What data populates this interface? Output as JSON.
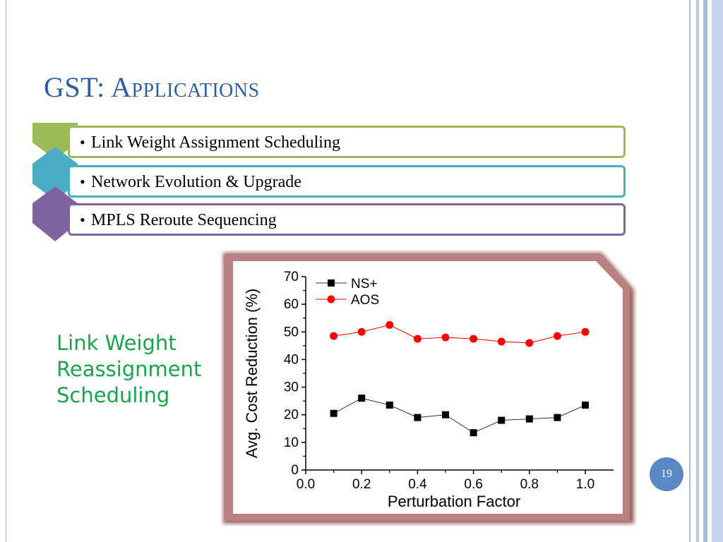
{
  "slide": {
    "title": "GST: Applications",
    "page_number": "19"
  },
  "bullets": [
    {
      "bullet": "•",
      "text": "Link Weight Assignment Scheduling",
      "color": "#9bbb59"
    },
    {
      "bullet": "•",
      "text": "Network Evolution & Upgrade",
      "color": "#4bacc6"
    },
    {
      "bullet": "•",
      "text": "MPLS Reroute Sequencing",
      "color": "#8064a2"
    }
  ],
  "side_label": {
    "line1": "Link Weight",
    "line2": "Reassignment",
    "line3": "Scheduling"
  },
  "chart_data": {
    "type": "line",
    "xlabel": "Perturbation Factor",
    "ylabel": "Avg. Cost Reduction (%)",
    "xlim": [
      0.0,
      1.0
    ],
    "ylim": [
      0,
      70
    ],
    "xticks": [
      "0.0",
      "0.2",
      "0.4",
      "0.6",
      "0.8",
      "1.0"
    ],
    "yticks": [
      "0",
      "10",
      "20",
      "30",
      "40",
      "50",
      "60",
      "70"
    ],
    "x": [
      0.1,
      0.2,
      0.3,
      0.4,
      0.5,
      0.6,
      0.7,
      0.8,
      0.9,
      1.0
    ],
    "series": [
      {
        "name": "NS+",
        "marker": "square",
        "color": "#000000",
        "values": [
          20.5,
          26,
          23.5,
          19,
          20,
          13.5,
          18,
          18.5,
          19,
          23.5
        ]
      },
      {
        "name": "AOS",
        "marker": "circle",
        "color": "#ff0000",
        "values": [
          48.5,
          50,
          52.5,
          47.5,
          48,
          47.5,
          46.5,
          46,
          48.5,
          50
        ]
      }
    ],
    "legend_position": "top-left",
    "grid": false
  }
}
